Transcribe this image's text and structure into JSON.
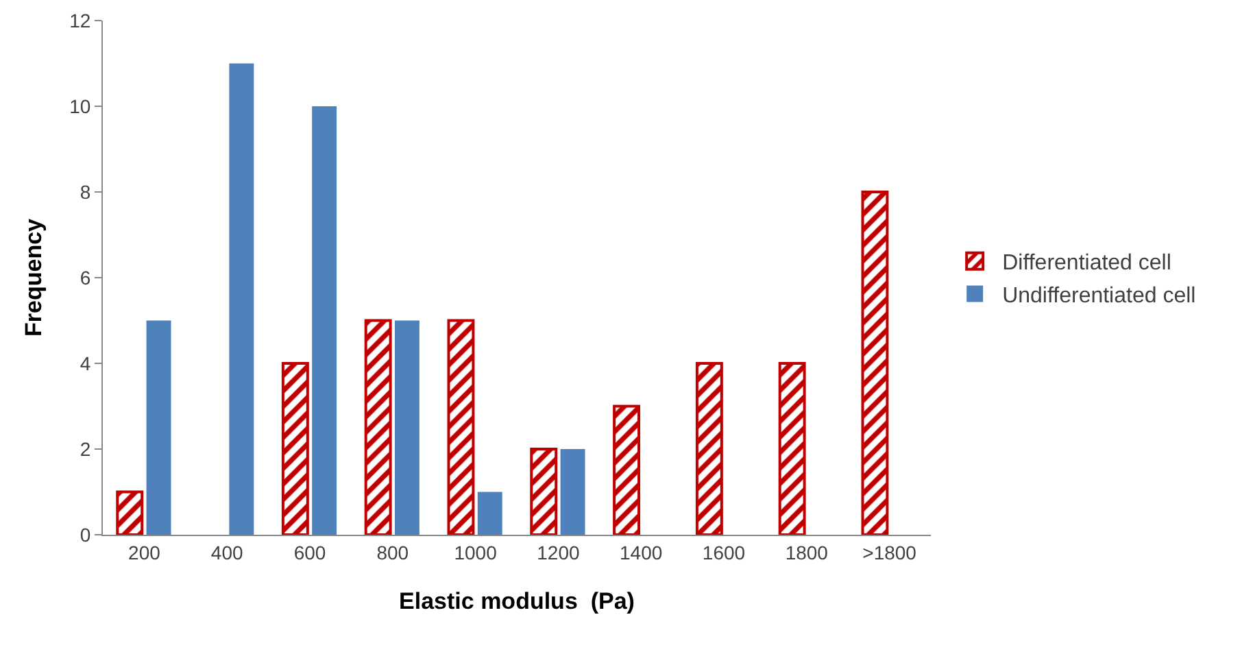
{
  "chart_data": {
    "type": "bar",
    "xlabel": "Elastic modulus  (Pa)",
    "ylabel": "Frequency",
    "categories": [
      "200",
      "400",
      "600",
      "800",
      "1000",
      "1200",
      "1400",
      "1600",
      "1800",
      ">1800"
    ],
    "series": [
      {
        "name": "Differentiated cell",
        "color": "#c00000",
        "values": [
          1,
          0,
          4,
          5,
          5,
          2,
          3,
          4,
          4,
          8
        ]
      },
      {
        "name": "Undifferentiated cell",
        "color": "#4f81bd",
        "values": [
          5,
          11,
          10,
          5,
          1,
          2,
          0,
          0,
          0,
          0
        ]
      }
    ],
    "ylim": [
      0,
      12
    ],
    "yticks": [
      0,
      2,
      4,
      6,
      8,
      10,
      12
    ],
    "grid": false,
    "legend": "right"
  }
}
